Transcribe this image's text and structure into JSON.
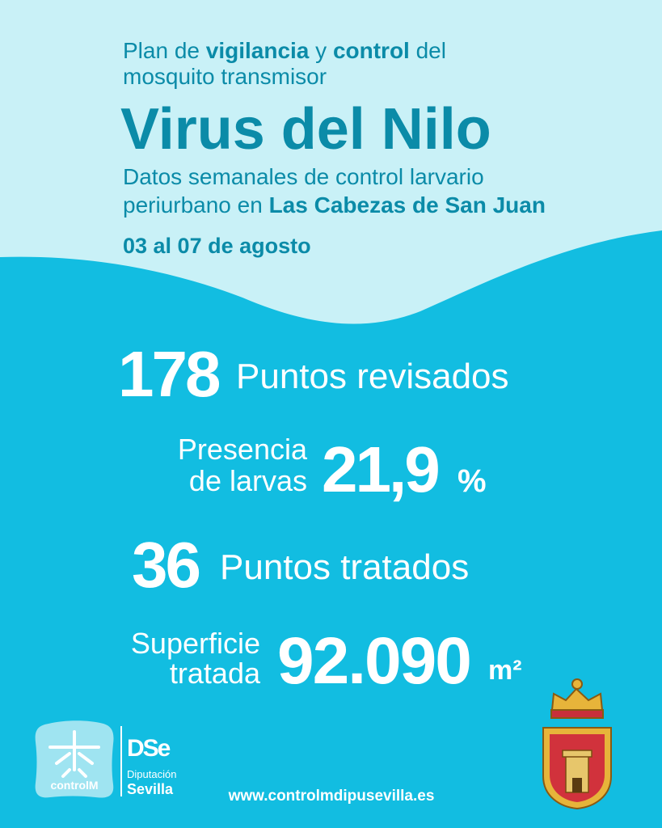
{
  "header": {
    "intro_line1": [
      "Plan de ",
      "vigilancia",
      " y ",
      "control",
      " del"
    ],
    "intro_line2": "mosquito transmisor",
    "title": "Virus del Nilo",
    "subtitle_line1": "Datos semanales de control larvario",
    "subtitle_line2": [
      "periurbano en ",
      "Las Cabezas de San Juan"
    ],
    "date": "03 al 07 de agosto"
  },
  "stats": {
    "points_checked": {
      "value": 178,
      "label": "Puntos revisados"
    },
    "larvae": {
      "label_line1": "Presencia",
      "label_line2": "de larvas",
      "value": "21,9",
      "unit": "%"
    },
    "points_treated": {
      "value": 36,
      "label": "Puntos tratados"
    },
    "surface": {
      "label_line1": "Superficie",
      "label_line2": "tratada",
      "value": "92.090",
      "unit": "m²"
    }
  },
  "footer": {
    "logo_controlm": "controlM",
    "logo_dipu_small": "Diputación",
    "logo_dipu_big": "Sevilla",
    "url": "www.controlmdipusevilla.es"
  }
}
